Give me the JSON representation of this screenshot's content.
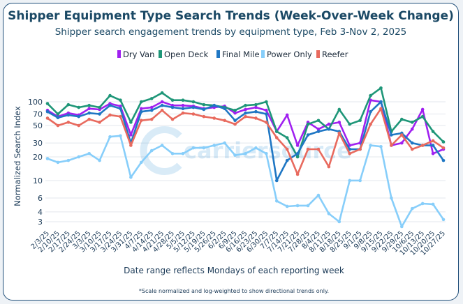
{
  "chart_data": {
    "type": "line",
    "title": "Shipper Equipment Type Search Trends (Week-Over-Week Change)",
    "subtitle": "Shipper search engagement trends by equipment type, Feb 3-Nov 2, 2025",
    "xlabel": "Date range reflects Mondays of each reporting week",
    "ylabel": "Normalized Search Index",
    "yscale": "log",
    "ylim": [
      2.6,
      160
    ],
    "yticks": [
      3,
      4,
      6,
      10,
      20,
      30,
      50,
      70,
      100
    ],
    "footnote": "*Scale normalized and log-weighted to show directional trends only.",
    "x_labels": [
      "2/3/25",
      "2/10/25",
      "2/17/25",
      "2/24/25",
      "3/3/25",
      "3/10/25",
      "3/17/25",
      "3/24/25",
      "3/31/25",
      "4/7/25",
      "4/14/25",
      "4/21/25",
      "4/28/25",
      "5/5/25",
      "5/12/25",
      "5/19/25",
      "5/26/25",
      "6/2/25",
      "6/9/25",
      "6/16/25",
      "6/23/25",
      "6/30/25",
      "7/7/25",
      "7/14/25",
      "7/21/25",
      "7/28/25",
      "8/4/25",
      "8/11/25",
      "8/18/25",
      "8/25/25",
      "9/1/25",
      "9/8/25",
      "9/15/25",
      "9/22/25",
      "9/29/25",
      "10/6/25",
      "10/13/25",
      "10/20/25",
      "10/27/25"
    ],
    "x_tick_labels": [
      "2/3/25",
      "2/10/25",
      "2/17/25",
      "2/24/25",
      "3/3/25",
      "3/10/25",
      "3/17/25",
      "3/24/25",
      "3/31/25",
      "4/7/25",
      "4/14/25",
      "4/21/25",
      "4/28/25",
      "5/5/25",
      "5/12/25",
      "5/19/25",
      "5/26/25",
      "6/2/25",
      "6/9/25",
      "6/16/25",
      "6/23/25",
      "6/30/25",
      "7/7/25",
      "7/14/25",
      "7/21/25",
      "7/28/25",
      "8/4/25",
      "8/11/25",
      "8/18/25",
      "8/25/25",
      "9/1/25",
      "9/8/25",
      "9/15/25",
      "9/22/25",
      "9/29/25",
      "10/6/25",
      "10/13/25",
      "10/20/25",
      "10/27/25"
    ],
    "series": [
      {
        "name": "Dry Van",
        "color": "#a020f0",
        "values": [
          78,
          65,
          72,
          68,
          82,
          80,
          95,
          88,
          38,
          82,
          85,
          100,
          90,
          90,
          88,
          82,
          85,
          88,
          72,
          80,
          85,
          78,
          42,
          68,
          28,
          55,
          45,
          52,
          55,
          28,
          30,
          105,
          100,
          28,
          30,
          45,
          80,
          22,
          25
        ]
      },
      {
        "name": "Open Deck",
        "color": "#1e9678",
        "values": [
          95,
          70,
          92,
          85,
          90,
          85,
          120,
          105,
          55,
          100,
          110,
          130,
          105,
          105,
          100,
          92,
          90,
          85,
          78,
          90,
          92,
          100,
          42,
          35,
          20,
          52,
          58,
          45,
          80,
          52,
          58,
          120,
          150,
          42,
          60,
          55,
          65,
          42,
          31
        ]
      },
      {
        "name": "Final Mile",
        "color": "#1f77c4",
        "values": [
          75,
          63,
          68,
          65,
          72,
          70,
          90,
          82,
          30,
          75,
          78,
          90,
          85,
          82,
          85,
          80,
          90,
          82,
          58,
          72,
          75,
          70,
          10,
          18,
          22,
          38,
          42,
          45,
          42,
          25,
          25,
          75,
          100,
          38,
          40,
          30,
          28,
          28,
          18
        ]
      },
      {
        "name": "Power Only",
        "color": "#87cefa",
        "values": [
          19,
          17,
          18,
          20,
          22,
          18,
          36,
          37,
          11,
          17,
          24,
          28,
          22,
          22,
          26,
          26,
          28,
          30,
          21,
          22,
          26,
          22,
          5.5,
          4.7,
          4.8,
          4.8,
          6.5,
          3.8,
          3.0,
          10,
          10,
          28,
          27,
          6,
          2.6,
          4.4,
          5.1,
          5,
          3.2
        ]
      },
      {
        "name": "Reefer",
        "color": "#e86a5e",
        "values": [
          62,
          50,
          55,
          50,
          60,
          55,
          68,
          65,
          28,
          58,
          60,
          78,
          60,
          72,
          70,
          65,
          62,
          58,
          52,
          65,
          62,
          55,
          35,
          25,
          12,
          25,
          25,
          15,
          40,
          22,
          25,
          52,
          82,
          28,
          38,
          25,
          28,
          32,
          26
        ]
      }
    ],
    "logo_text": "carriersource"
  }
}
